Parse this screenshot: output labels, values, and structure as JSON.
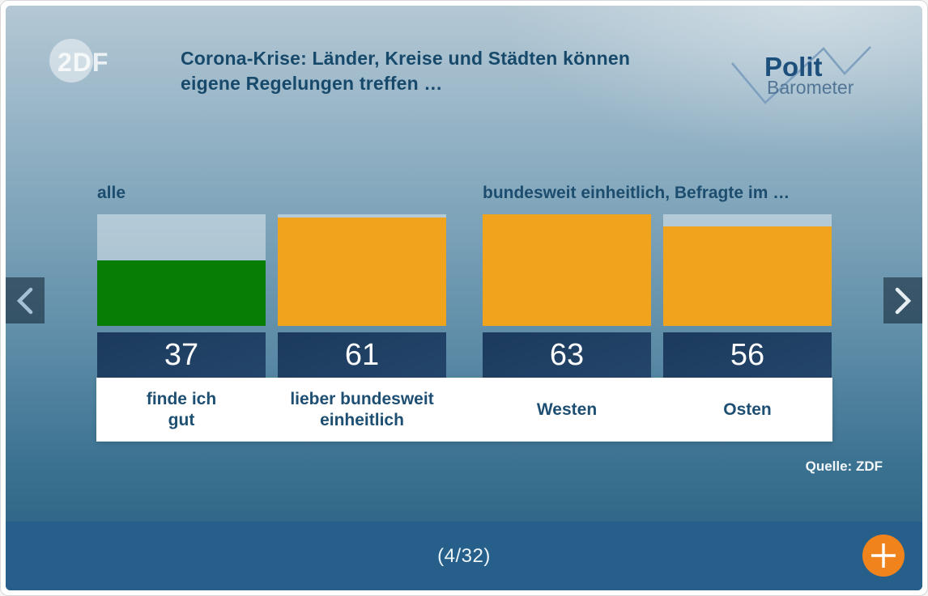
{
  "header": {
    "title_line1": "Corona-Krise: Länder, Kreise und Städten können",
    "title_line2": "eigene Regelungen treffen …",
    "zdf_logo_text": "2DF",
    "polit_logo_line1": "Polit",
    "polit_logo_line2": "Barometer"
  },
  "chart_data": {
    "type": "bar",
    "title": "Corona-Krise: Länder, Kreise und Städten können eigene Regelungen treffen …",
    "group_labels": [
      "alle",
      "bundesweit einheitlich, Befragte im …"
    ],
    "categories": [
      "finde ich gut",
      "lieber bundesweit einheitlich",
      "Westen",
      "Osten"
    ],
    "values": [
      37,
      61,
      63,
      56
    ],
    "bar_colors": [
      "#077d06",
      "#f0a31c",
      "#f0a31c",
      "#f0a31c"
    ],
    "track_color": "rgba(255,255,255,0.42)",
    "scale_max": 63,
    "unit": "percent",
    "grid": false,
    "legend": "none",
    "source": "Quelle: ZDF"
  },
  "bars": [
    {
      "value": "37",
      "label_line1": "finde ich",
      "label_line2": "gut"
    },
    {
      "value": "61",
      "label_line1": "lieber bundesweit",
      "label_line2": "einheitlich"
    },
    {
      "value": "63",
      "label_line1": "Westen",
      "label_line2": ""
    },
    {
      "value": "56",
      "label_line1": "Osten",
      "label_line2": ""
    }
  ],
  "labels": {
    "group_left": "alle",
    "group_right": "bundesweit einheitlich, Befragte im …",
    "source": "Quelle: ZDF"
  },
  "footer": {
    "page_indicator": "(4/32)"
  },
  "icons": {
    "prev": "chevron-left",
    "next": "chevron-right",
    "add": "plus"
  },
  "colors": {
    "title_blue": "#17496b",
    "number_strip": "#1d3c5f",
    "footer_bar": "#26608a",
    "plus_button": "#f1831d",
    "bar_orange": "#f0a31c",
    "bar_green": "#077d06"
  }
}
